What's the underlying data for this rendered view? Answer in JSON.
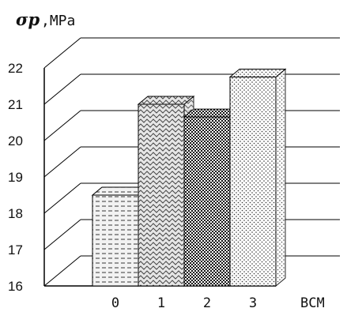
{
  "chart_data": {
    "type": "bar",
    "categories": [
      "0",
      "1",
      "2",
      "3"
    ],
    "values": [
      18.5,
      21.0,
      20.65,
      21.75
    ],
    "ylim": [
      16,
      22
    ],
    "yticks": [
      "16",
      "17",
      "18",
      "19",
      "20",
      "21",
      "22"
    ],
    "ylabel_symbol": "σp",
    "ylabel_unit": ",MPa",
    "xlabel": "BCM",
    "grid": true,
    "style": "3d",
    "fills": [
      "dashes",
      "waves",
      "checker",
      "dots"
    ]
  }
}
